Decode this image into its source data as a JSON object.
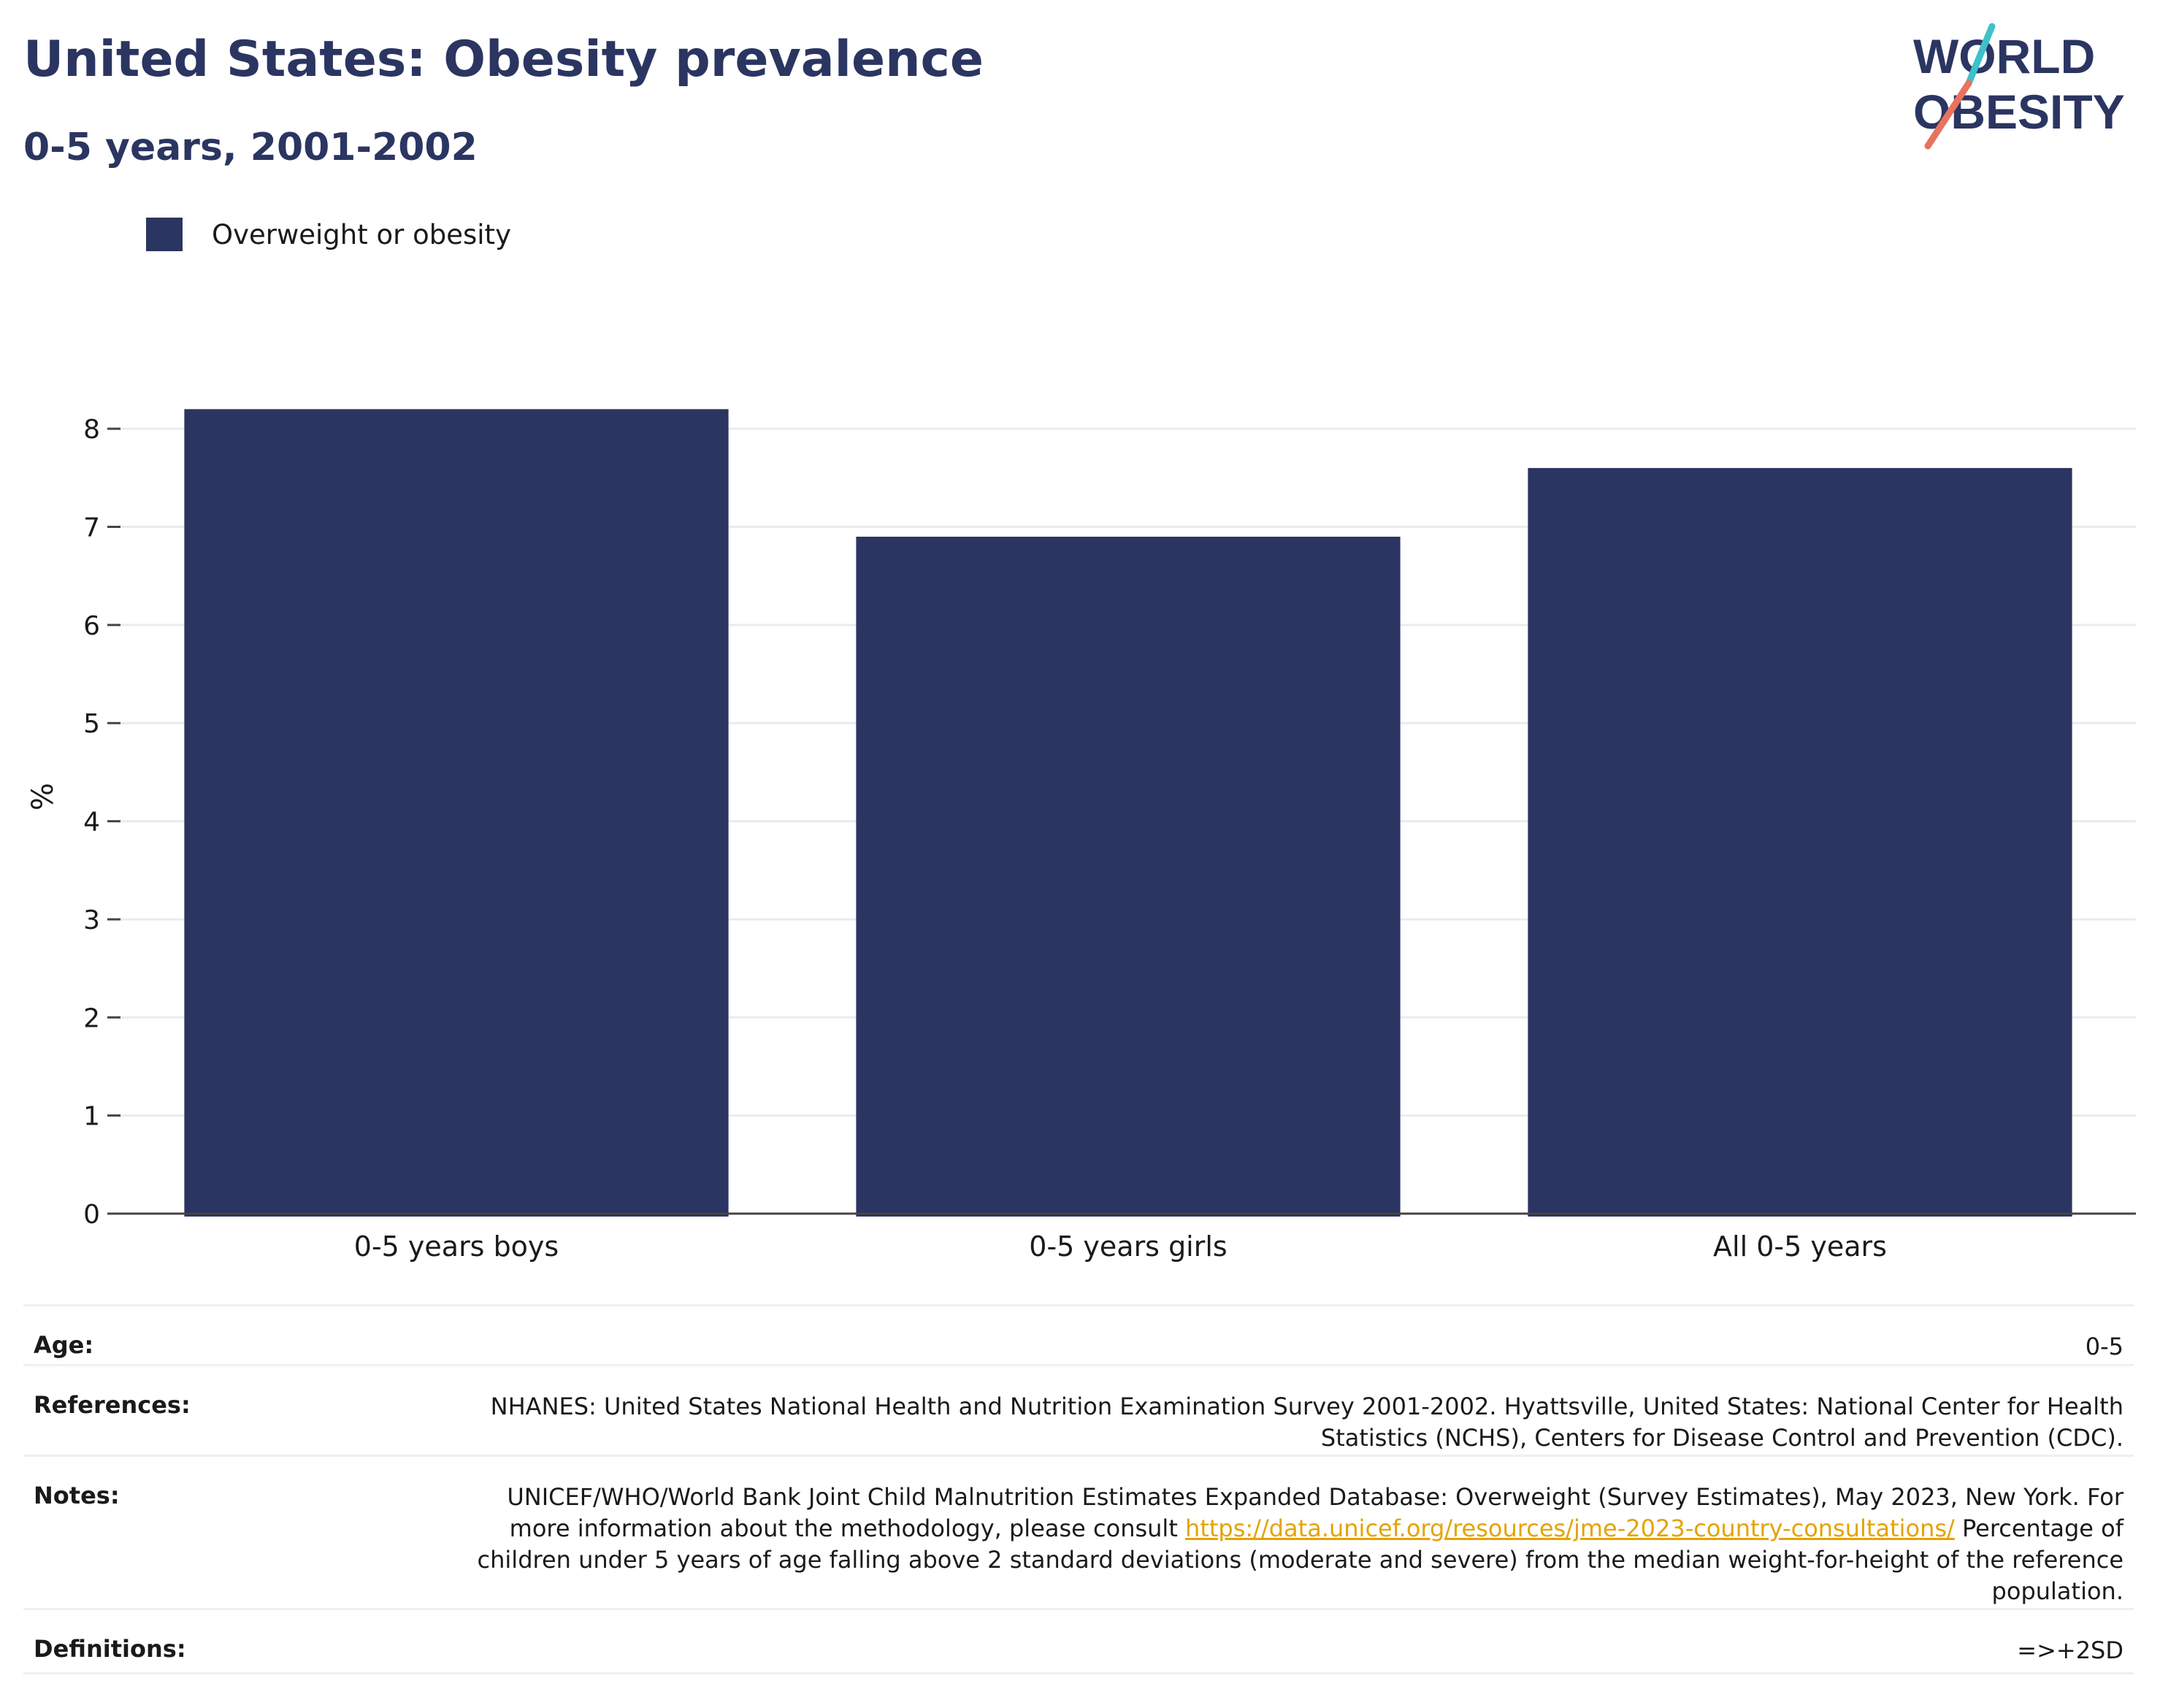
{
  "header": {
    "title": "United States: Obesity prevalence",
    "subtitle": "0-5 years, 2001-2002"
  },
  "logo": {
    "line1": "WORLD",
    "line2": "OBESITY",
    "brand_color": "#2b3561",
    "accent_teal": "#3ec1c9",
    "accent_coral": "#e8735e"
  },
  "legend": {
    "items": [
      {
        "label": "Overweight or obesity",
        "color": "#2b3561"
      }
    ]
  },
  "chart_data": {
    "type": "bar",
    "categories": [
      "0-5 years boys",
      "0-5 years girls",
      "All 0-5 years"
    ],
    "series": [
      {
        "name": "Overweight or obesity",
        "values": [
          8.2,
          6.9,
          7.6
        ],
        "color": "#2b3561"
      }
    ],
    "title": "United States: Obesity prevalence",
    "subtitle": "0-5 years, 2001-2002",
    "xlabel": "",
    "ylabel": "%",
    "ylim": [
      0,
      8.5
    ],
    "yticks": [
      0,
      1,
      2,
      3,
      4,
      5,
      6,
      7,
      8
    ],
    "grid": true,
    "legend_position": "top-left"
  },
  "info": {
    "age": {
      "label": "Age:",
      "value": "0-5"
    },
    "references": {
      "label": "References:",
      "value": "NHANES: United States National Health and Nutrition Examination Survey 2001-2002. Hyattsville, United States: National Center for Health Statistics (NCHS), Centers for Disease Control and Prevention (CDC)."
    },
    "notes": {
      "label": "Notes:",
      "value_before": "UNICEF/WHO/World Bank Joint Child Malnutrition Estimates Expanded Database: Overweight (Survey Estimates), May 2023, New York. For more information about the methodology, please consult ",
      "link": "https://data.unicef.org/resources/jme-2023-country-consultations/",
      "value_after": " Percentage of children under 5 years of age falling above 2 standard deviations (moderate and severe) from the median weight-for-height of the reference population."
    },
    "definitions": {
      "label": "Definitions:",
      "value": "=>+2SD"
    }
  }
}
